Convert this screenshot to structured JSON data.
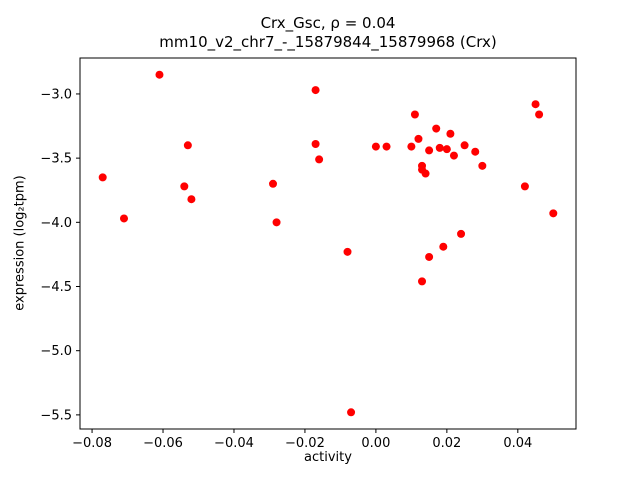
{
  "title": {
    "line1": "Crx_Gsc, ρ = 0.04",
    "line2": "mm10_v2_chr7_-_15879844_15879968 (Crx)"
  },
  "chart_data": {
    "type": "scatter",
    "title": "Crx_Gsc, ρ = 0.04 / mm10_v2_chr7_-_15879844_15879968 (Crx)",
    "xlabel": "activity",
    "ylabel": "expression (log₂tpm)",
    "xlim": [
      -0.0834,
      0.0564
    ],
    "ylim": [
      -5.61,
      -2.72
    ],
    "grid": false,
    "legend": "none",
    "marker_color": "#ff0000",
    "x_tick_values": [
      -0.08,
      -0.06,
      -0.04,
      -0.02,
      0.0,
      0.02,
      0.04
    ],
    "x_tick_labels": [
      "−0.08",
      "−0.06",
      "−0.04",
      "−0.02",
      "0.00",
      "0.02",
      "0.04"
    ],
    "y_tick_values": [
      -3.0,
      -3.5,
      -4.0,
      -4.5,
      -5.0,
      -5.5
    ],
    "y_tick_labels": [
      "−3.0",
      "−3.5",
      "−4.0",
      "−4.5",
      "−5.0",
      "−5.5"
    ],
    "points": [
      [
        -0.077,
        -3.65
      ],
      [
        -0.071,
        -3.97
      ],
      [
        -0.061,
        -2.85
      ],
      [
        -0.054,
        -3.72
      ],
      [
        -0.053,
        -3.4
      ],
      [
        -0.052,
        -3.82
      ],
      [
        -0.029,
        -3.7
      ],
      [
        -0.028,
        -4.0
      ],
      [
        -0.017,
        -2.97
      ],
      [
        -0.017,
        -3.39
      ],
      [
        -0.016,
        -3.51
      ],
      [
        -0.008,
        -4.23
      ],
      [
        -0.007,
        -5.48
      ],
      [
        0.0,
        -3.41
      ],
      [
        0.003,
        -3.41
      ],
      [
        0.01,
        -3.41
      ],
      [
        0.011,
        -3.16
      ],
      [
        0.012,
        -3.35
      ],
      [
        0.013,
        -3.56
      ],
      [
        0.013,
        -3.59
      ],
      [
        0.013,
        -4.46
      ],
      [
        0.014,
        -3.62
      ],
      [
        0.015,
        -3.44
      ],
      [
        0.015,
        -4.27
      ],
      [
        0.017,
        -3.27
      ],
      [
        0.018,
        -3.42
      ],
      [
        0.019,
        -4.19
      ],
      [
        0.02,
        -3.43
      ],
      [
        0.021,
        -3.31
      ],
      [
        0.022,
        -3.48
      ],
      [
        0.024,
        -4.09
      ],
      [
        0.025,
        -3.4
      ],
      [
        0.028,
        -3.45
      ],
      [
        0.03,
        -3.56
      ],
      [
        0.042,
        -3.72
      ],
      [
        0.045,
        -3.08
      ],
      [
        0.046,
        -3.16
      ],
      [
        0.05,
        -3.93
      ]
    ]
  }
}
